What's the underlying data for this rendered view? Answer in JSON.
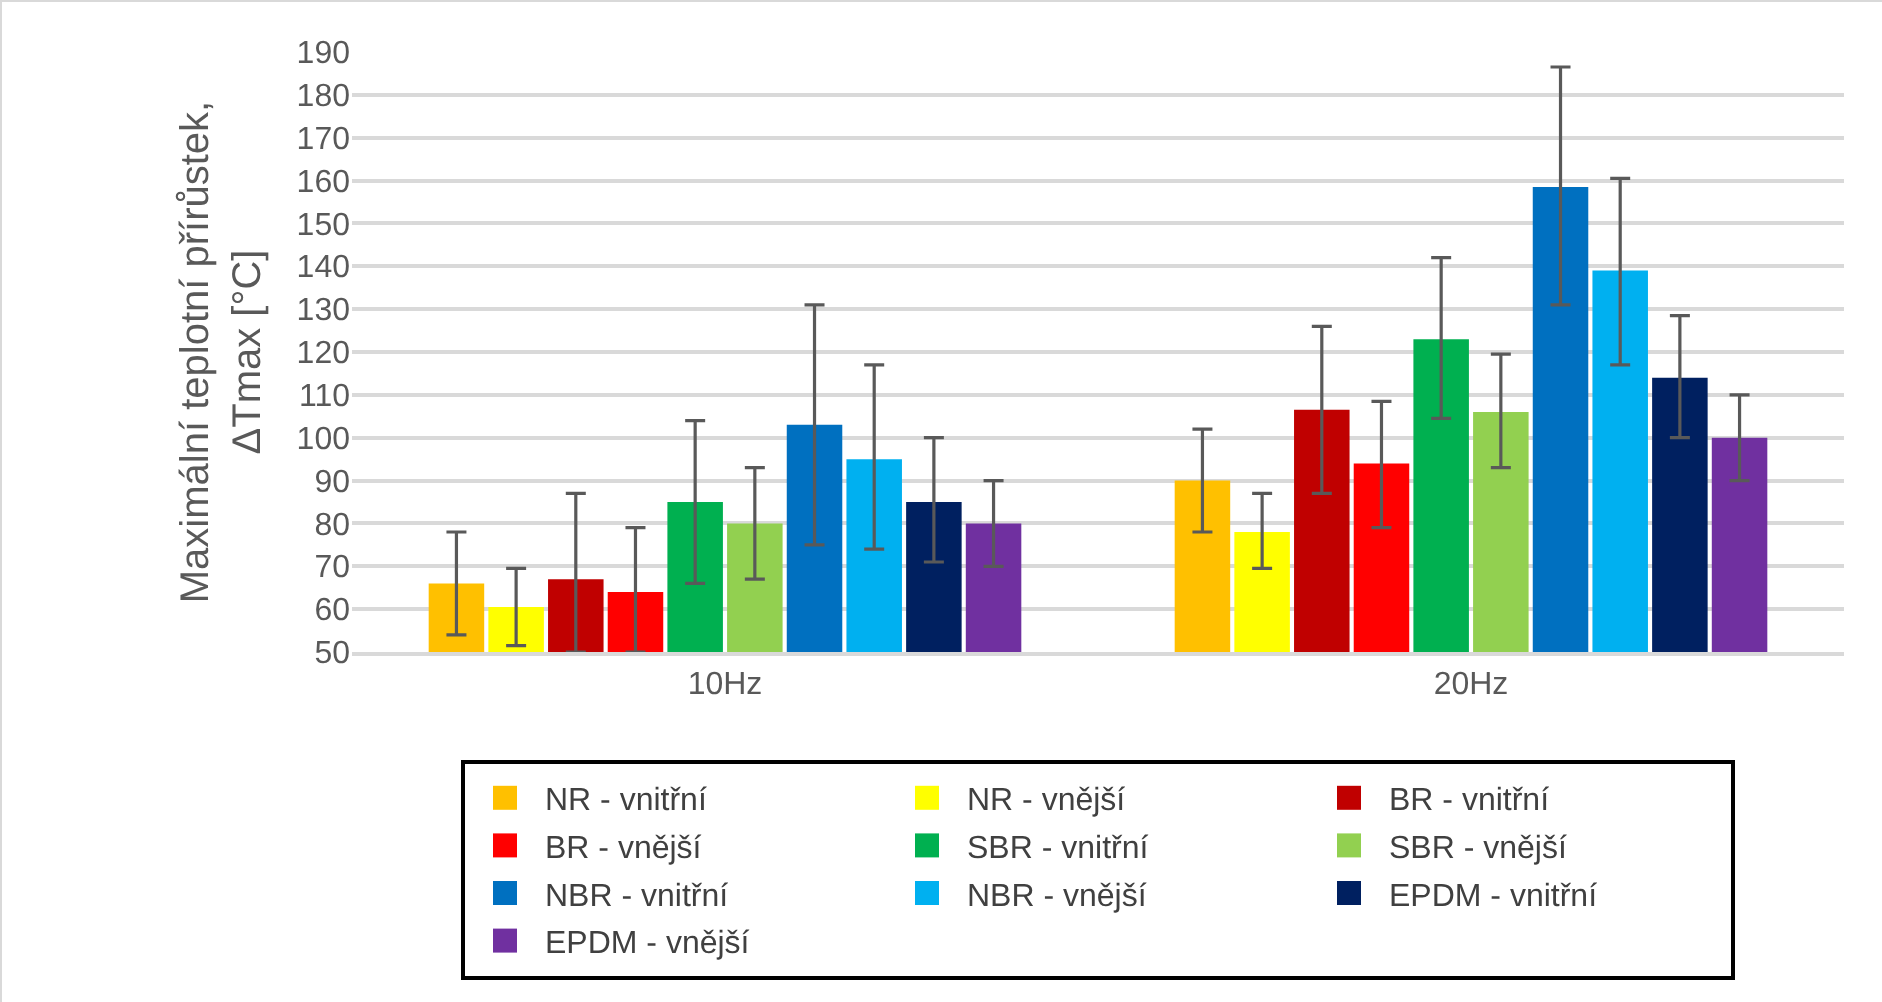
{
  "chart_data": {
    "type": "bar",
    "ylabel": "Maximální teplotní přírůstek,\nΔTmax [°C]",
    "categories": [
      "10Hz",
      "20Hz"
    ],
    "ylim": [
      50,
      190
    ],
    "yticks": [
      50,
      60,
      70,
      80,
      90,
      100,
      110,
      120,
      130,
      140,
      150,
      160,
      170,
      180,
      190
    ],
    "grid": "y",
    "legend": "bottom",
    "series": [
      {
        "name": "NR - vnitřní",
        "color": "#ffc000",
        "values": [
          66,
          90
        ],
        "errors": [
          [
            54,
            78
          ],
          [
            78,
            102
          ]
        ]
      },
      {
        "name": "NR - vnější",
        "color": "#ffff00",
        "values": [
          60.5,
          78
        ],
        "errors": [
          [
            51.5,
            69.5
          ],
          [
            69.5,
            87
          ]
        ]
      },
      {
        "name": "BR - vnitřní",
        "color": "#c00000",
        "values": [
          67,
          106.5
        ],
        "errors": [
          [
            50,
            87
          ],
          [
            87,
            126
          ]
        ]
      },
      {
        "name": "BR - vnější",
        "color": "#ff0000",
        "values": [
          64,
          94
        ],
        "errors": [
          [
            50,
            79
          ],
          [
            79,
            108.5
          ]
        ]
      },
      {
        "name": "SBR - vnitřní",
        "color": "#00b050",
        "values": [
          85,
          123
        ],
        "errors": [
          [
            66,
            104
          ],
          [
            104.5,
            142
          ]
        ]
      },
      {
        "name": "SBR - vnější",
        "color": "#92d050",
        "values": [
          80,
          106
        ],
        "errors": [
          [
            67,
            93
          ],
          [
            93,
            119.5
          ]
        ]
      },
      {
        "name": "NBR - vnitřní",
        "color": "#0070c0",
        "values": [
          103,
          158.5
        ],
        "errors": [
          [
            75,
            131
          ],
          [
            131,
            186.5
          ]
        ]
      },
      {
        "name": "NBR - vnější",
        "color": "#00b0f0",
        "values": [
          95,
          139
        ],
        "errors": [
          [
            74,
            117
          ],
          [
            117,
            160.5
          ]
        ]
      },
      {
        "name": "EPDM - vnitřní",
        "color": "#002060",
        "values": [
          85,
          114
        ],
        "errors": [
          [
            71,
            100
          ],
          [
            100,
            128.5
          ]
        ]
      },
      {
        "name": "EPDM - vnější",
        "color": "#7030a0",
        "values": [
          80,
          100
        ],
        "errors": [
          [
            70,
            90
          ],
          [
            90,
            110
          ]
        ]
      }
    ]
  }
}
